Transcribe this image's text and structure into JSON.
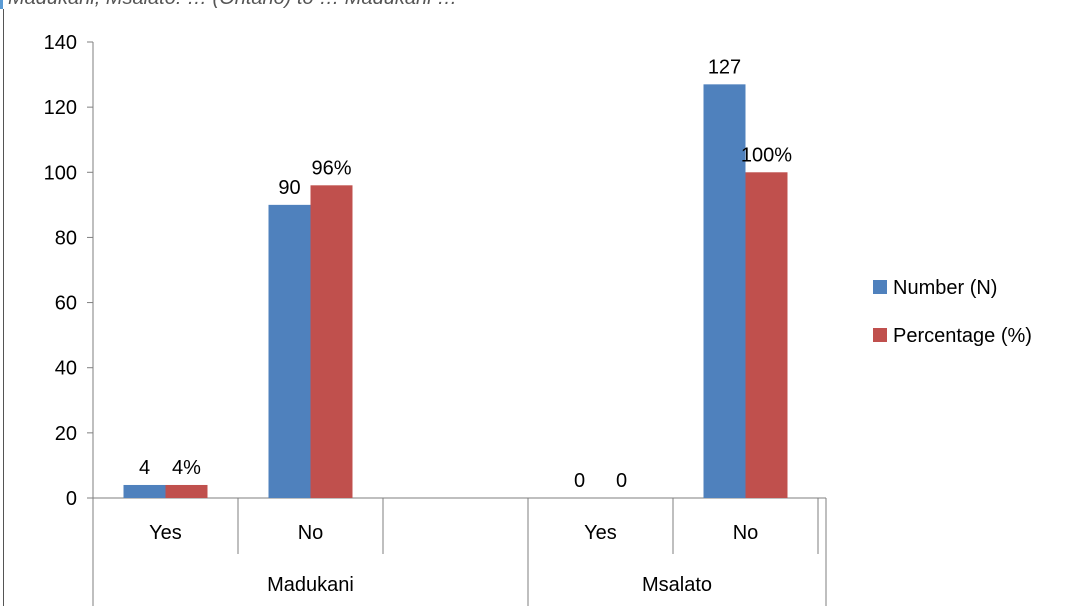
{
  "header_caption": "Madukani, Msalato: … (Ontario) to … Madukani …",
  "chart_data": {
    "type": "bar",
    "title": "",
    "xlabel": "",
    "ylabel": "",
    "ylim": [
      0,
      140
    ],
    "yticks": [
      0,
      20,
      40,
      60,
      80,
      100,
      120,
      140
    ],
    "grid": false,
    "legend_position": "right",
    "groups": [
      {
        "name": "Madukani",
        "categories": [
          "Yes",
          "No"
        ]
      },
      {
        "name": "Msalato",
        "categories": [
          "Yes",
          "No"
        ]
      }
    ],
    "series": [
      {
        "name": "Number (N)",
        "color": "#4f81bd",
        "values": [
          4,
          90,
          0,
          127
        ],
        "labels": [
          "4",
          "90",
          "0",
          "127"
        ]
      },
      {
        "name": "Percentage (%)",
        "color": "#c0504d",
        "values": [
          4,
          96,
          0,
          100
        ],
        "labels": [
          "4%",
          "96%",
          "0",
          "100%"
        ]
      }
    ]
  }
}
